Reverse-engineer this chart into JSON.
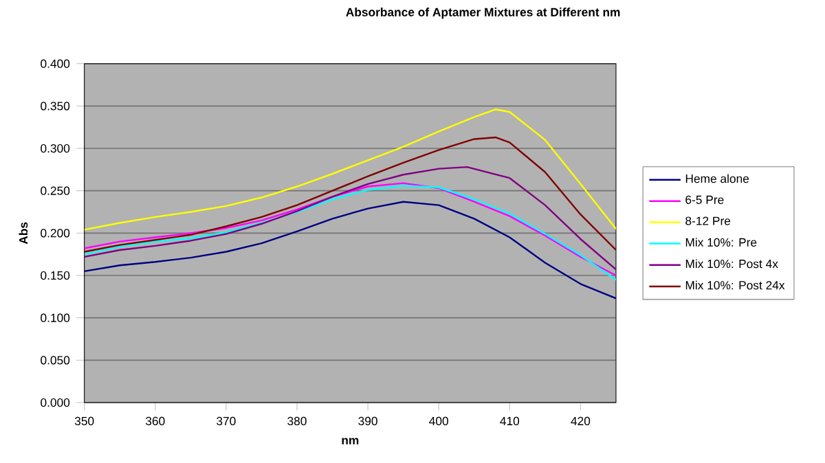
{
  "chart_data": {
    "type": "line",
    "title": "Absorbance of Aptamer Mixtures at Different nm",
    "xlabel": "nm",
    "ylabel": "Abs",
    "xlim": [
      350,
      425
    ],
    "xticks": [
      350,
      360,
      370,
      380,
      390,
      400,
      410,
      420
    ],
    "ylim": [
      0,
      0.4
    ],
    "yticks": [
      {
        "value": 0,
        "label": "0.000"
      },
      {
        "value": 0.05,
        "label": "0.050"
      },
      {
        "value": 0.1,
        "label": "0.100"
      },
      {
        "value": 0.15,
        "label": "0.150"
      },
      {
        "value": 0.2,
        "label": "0.200"
      },
      {
        "value": 0.25,
        "label": "0.250"
      },
      {
        "value": 0.3,
        "label": "0.300"
      },
      {
        "value": 0.35,
        "label": "0.350"
      },
      {
        "value": 0.4,
        "label": "0.400"
      }
    ],
    "grid": "y",
    "legend": "right",
    "marker": "none",
    "line_style": "solid",
    "series": [
      {
        "name": "Heme alone",
        "color": "#000080",
        "x": [
          350,
          355,
          360,
          365,
          370,
          375,
          380,
          385,
          390,
          395,
          400,
          405,
          410,
          415,
          420,
          425
        ],
        "values": [
          0.155,
          0.162,
          0.166,
          0.171,
          0.178,
          0.188,
          0.202,
          0.217,
          0.229,
          0.237,
          0.233,
          0.217,
          0.195,
          0.165,
          0.14,
          0.123
        ]
      },
      {
        "name": "6-5 Pre",
        "color": "#ff00ff",
        "x": [
          350,
          355,
          360,
          365,
          370,
          375,
          380,
          385,
          390,
          395,
          400,
          405,
          410,
          415,
          420,
          425
        ],
        "values": [
          0.182,
          0.19,
          0.195,
          0.2,
          0.206,
          0.215,
          0.228,
          0.243,
          0.255,
          0.259,
          0.253,
          0.237,
          0.22,
          0.197,
          0.172,
          0.15
        ]
      },
      {
        "name": "8-12 Pre",
        "color": "#ffff00",
        "x": [
          350,
          355,
          360,
          365,
          370,
          375,
          380,
          385,
          390,
          395,
          400,
          405,
          408,
          410,
          415,
          420,
          425
        ],
        "values": [
          0.204,
          0.212,
          0.219,
          0.225,
          0.232,
          0.242,
          0.255,
          0.27,
          0.286,
          0.302,
          0.32,
          0.337,
          0.346,
          0.343,
          0.31,
          0.258,
          0.205
        ]
      },
      {
        "name": "Mix 10%: Pre",
        "color": "#00ffff",
        "x": [
          350,
          355,
          360,
          365,
          370,
          375,
          380,
          385,
          390,
          395,
          400,
          405,
          410,
          415,
          420,
          425
        ],
        "values": [
          0.175,
          0.184,
          0.19,
          0.194,
          0.201,
          0.212,
          0.225,
          0.24,
          0.251,
          0.256,
          0.254,
          0.24,
          0.223,
          0.199,
          0.174,
          0.145
        ]
      },
      {
        "name": "Mix 10%: Post 4x",
        "color": "#800080",
        "x": [
          350,
          355,
          360,
          365,
          370,
          375,
          380,
          385,
          390,
          395,
          400,
          404,
          410,
          415,
          420,
          425
        ],
        "values": [
          0.172,
          0.18,
          0.185,
          0.191,
          0.199,
          0.211,
          0.226,
          0.243,
          0.258,
          0.269,
          0.276,
          0.278,
          0.265,
          0.233,
          0.193,
          0.157
        ]
      },
      {
        "name": "Mix 10%: Post 24x",
        "color": "#800000",
        "x": [
          350,
          355,
          360,
          365,
          370,
          375,
          380,
          385,
          390,
          395,
          400,
          405,
          408,
          410,
          415,
          420,
          425
        ],
        "values": [
          0.178,
          0.186,
          0.192,
          0.198,
          0.208,
          0.219,
          0.233,
          0.25,
          0.267,
          0.283,
          0.298,
          0.311,
          0.313,
          0.307,
          0.272,
          0.222,
          0.18
        ]
      }
    ]
  }
}
